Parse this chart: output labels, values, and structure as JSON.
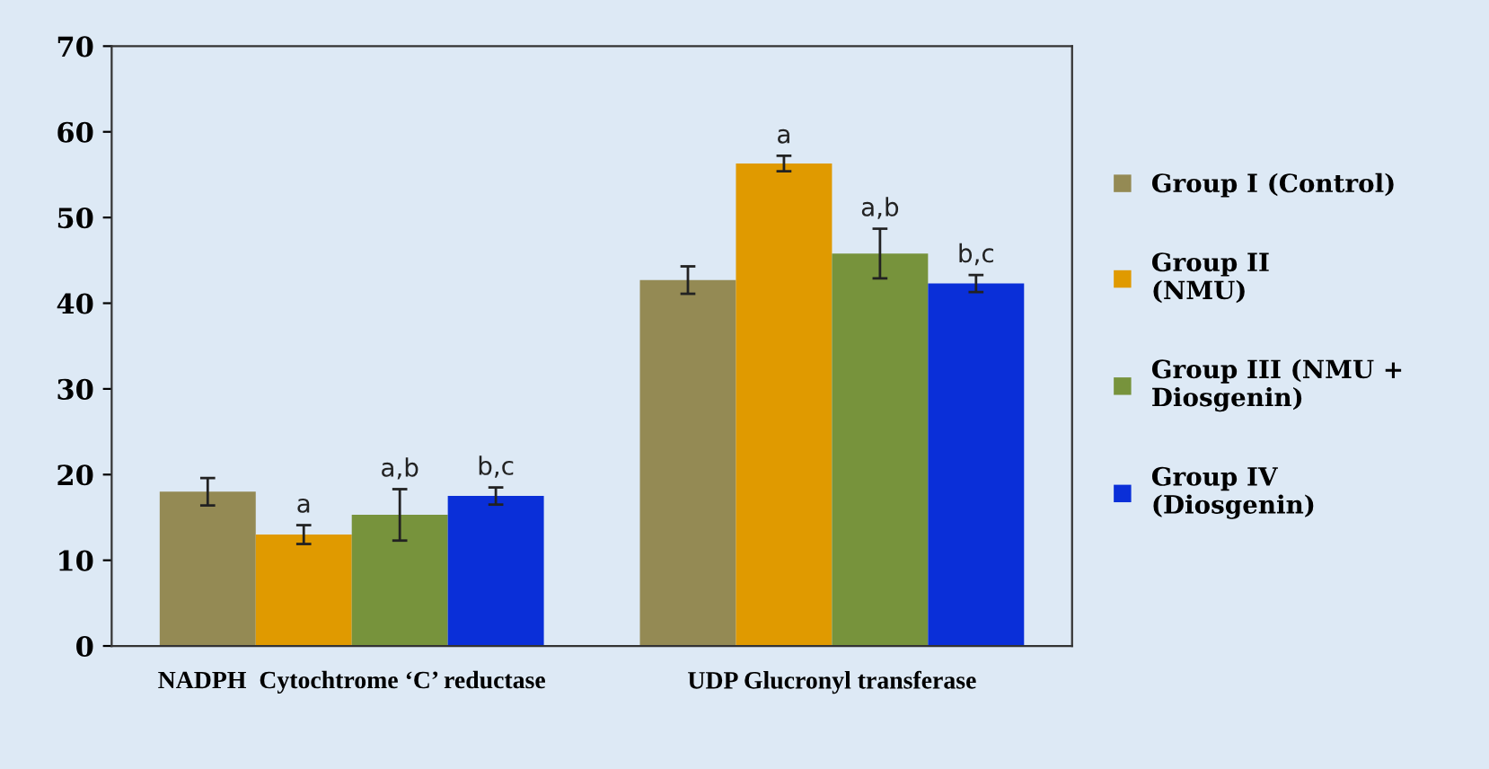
{
  "chart_data": {
    "type": "bar",
    "categories": [
      "NADPH  Cytochtrome ‘C’ reductase",
      "UDP Glucronyl transferase"
    ],
    "series": [
      {
        "name": "Group I (Control)",
        "color": "#948a54",
        "values": [
          18.0,
          42.7
        ],
        "errors": [
          1.6,
          1.6
        ],
        "value_labels": [
          null,
          null
        ]
      },
      {
        "name": "Group II\n(NMU)",
        "color": "#e09a00",
        "values": [
          13.0,
          56.3
        ],
        "errors": [
          1.1,
          0.9
        ],
        "value_labels": [
          "a",
          "a"
        ]
      },
      {
        "name": "Group III (NMU +\nDiosgenin)",
        "color": "#77933c",
        "values": [
          15.3,
          45.8
        ],
        "errors": [
          3.0,
          2.9
        ],
        "value_labels": [
          "a,b",
          "a,b"
        ]
      },
      {
        "name": "Group IV\n(Diosgenin)",
        "color": "#0a2fd8",
        "values": [
          17.5,
          42.3
        ],
        "errors": [
          1.0,
          1.0
        ],
        "value_labels": [
          "b,c",
          "b,c"
        ]
      }
    ],
    "ylim": [
      0,
      70
    ],
    "yticks": [
      0,
      10,
      20,
      30,
      40,
      50,
      60,
      70
    ],
    "grid": false,
    "legend": "right"
  }
}
